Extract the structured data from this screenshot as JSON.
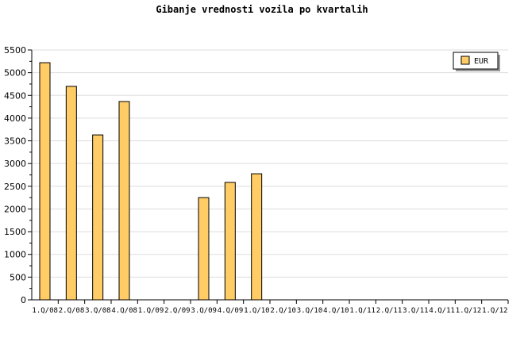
{
  "chart_data": {
    "type": "bar",
    "title": "Gibanje vrednosti vozila po kvartalih",
    "xlabel": "",
    "ylabel": "",
    "ylim": [
      0,
      5500
    ],
    "yticks": [
      0,
      500,
      1000,
      1500,
      2000,
      2500,
      3000,
      3500,
      4000,
      4500,
      5000,
      5500
    ],
    "grid": true,
    "legend_position": "top-right",
    "categories": [
      "1.Q/08",
      "2.Q/08",
      "3.Q/08",
      "4.Q/08",
      "1.Q/09",
      "2.Q/09",
      "3.Q/09",
      "4.Q/09",
      "1.Q/10",
      "2.Q/10",
      "3.Q/10",
      "4.Q/10",
      "1.Q/11",
      "2.Q/11",
      "3.Q/11",
      "4.Q/11",
      "1.Q/12",
      "1.Q/12"
    ],
    "series": [
      {
        "name": "EUR",
        "color": "#ffcc66",
        "values": [
          5220,
          4700,
          3630,
          4365,
          null,
          null,
          2250,
          2585,
          2775,
          null,
          null,
          null,
          null,
          null,
          null,
          null,
          null,
          null
        ]
      }
    ]
  }
}
